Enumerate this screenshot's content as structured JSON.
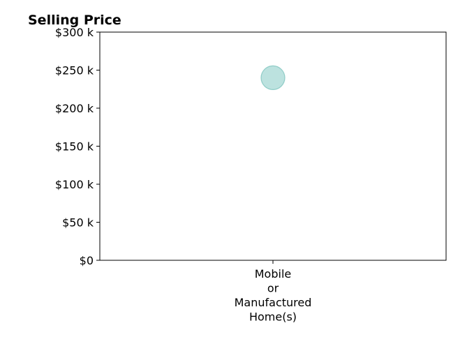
{
  "chart_data": {
    "type": "scatter",
    "title": "Selling Price",
    "xlabel": "",
    "ylabel": "",
    "categories": [
      "Mobile or Manufactured Home(s)"
    ],
    "category_label_lines": [
      [
        "Mobile",
        "or",
        "Manufactured",
        "Home(s)"
      ]
    ],
    "series": [
      {
        "values": [
          240000
        ]
      }
    ],
    "ylim": [
      0,
      300000
    ],
    "yticks": [
      0,
      50000,
      100000,
      150000,
      200000,
      250000,
      300000
    ],
    "ytick_labels": [
      "$0",
      "$50 k",
      "$100 k",
      "$150 k",
      "$200 k",
      "$250 k",
      "$300 k"
    ],
    "grid": false,
    "legend": "none",
    "marker_color": "#8fcfc9",
    "marker_edge_color": "#7cc3bd"
  }
}
